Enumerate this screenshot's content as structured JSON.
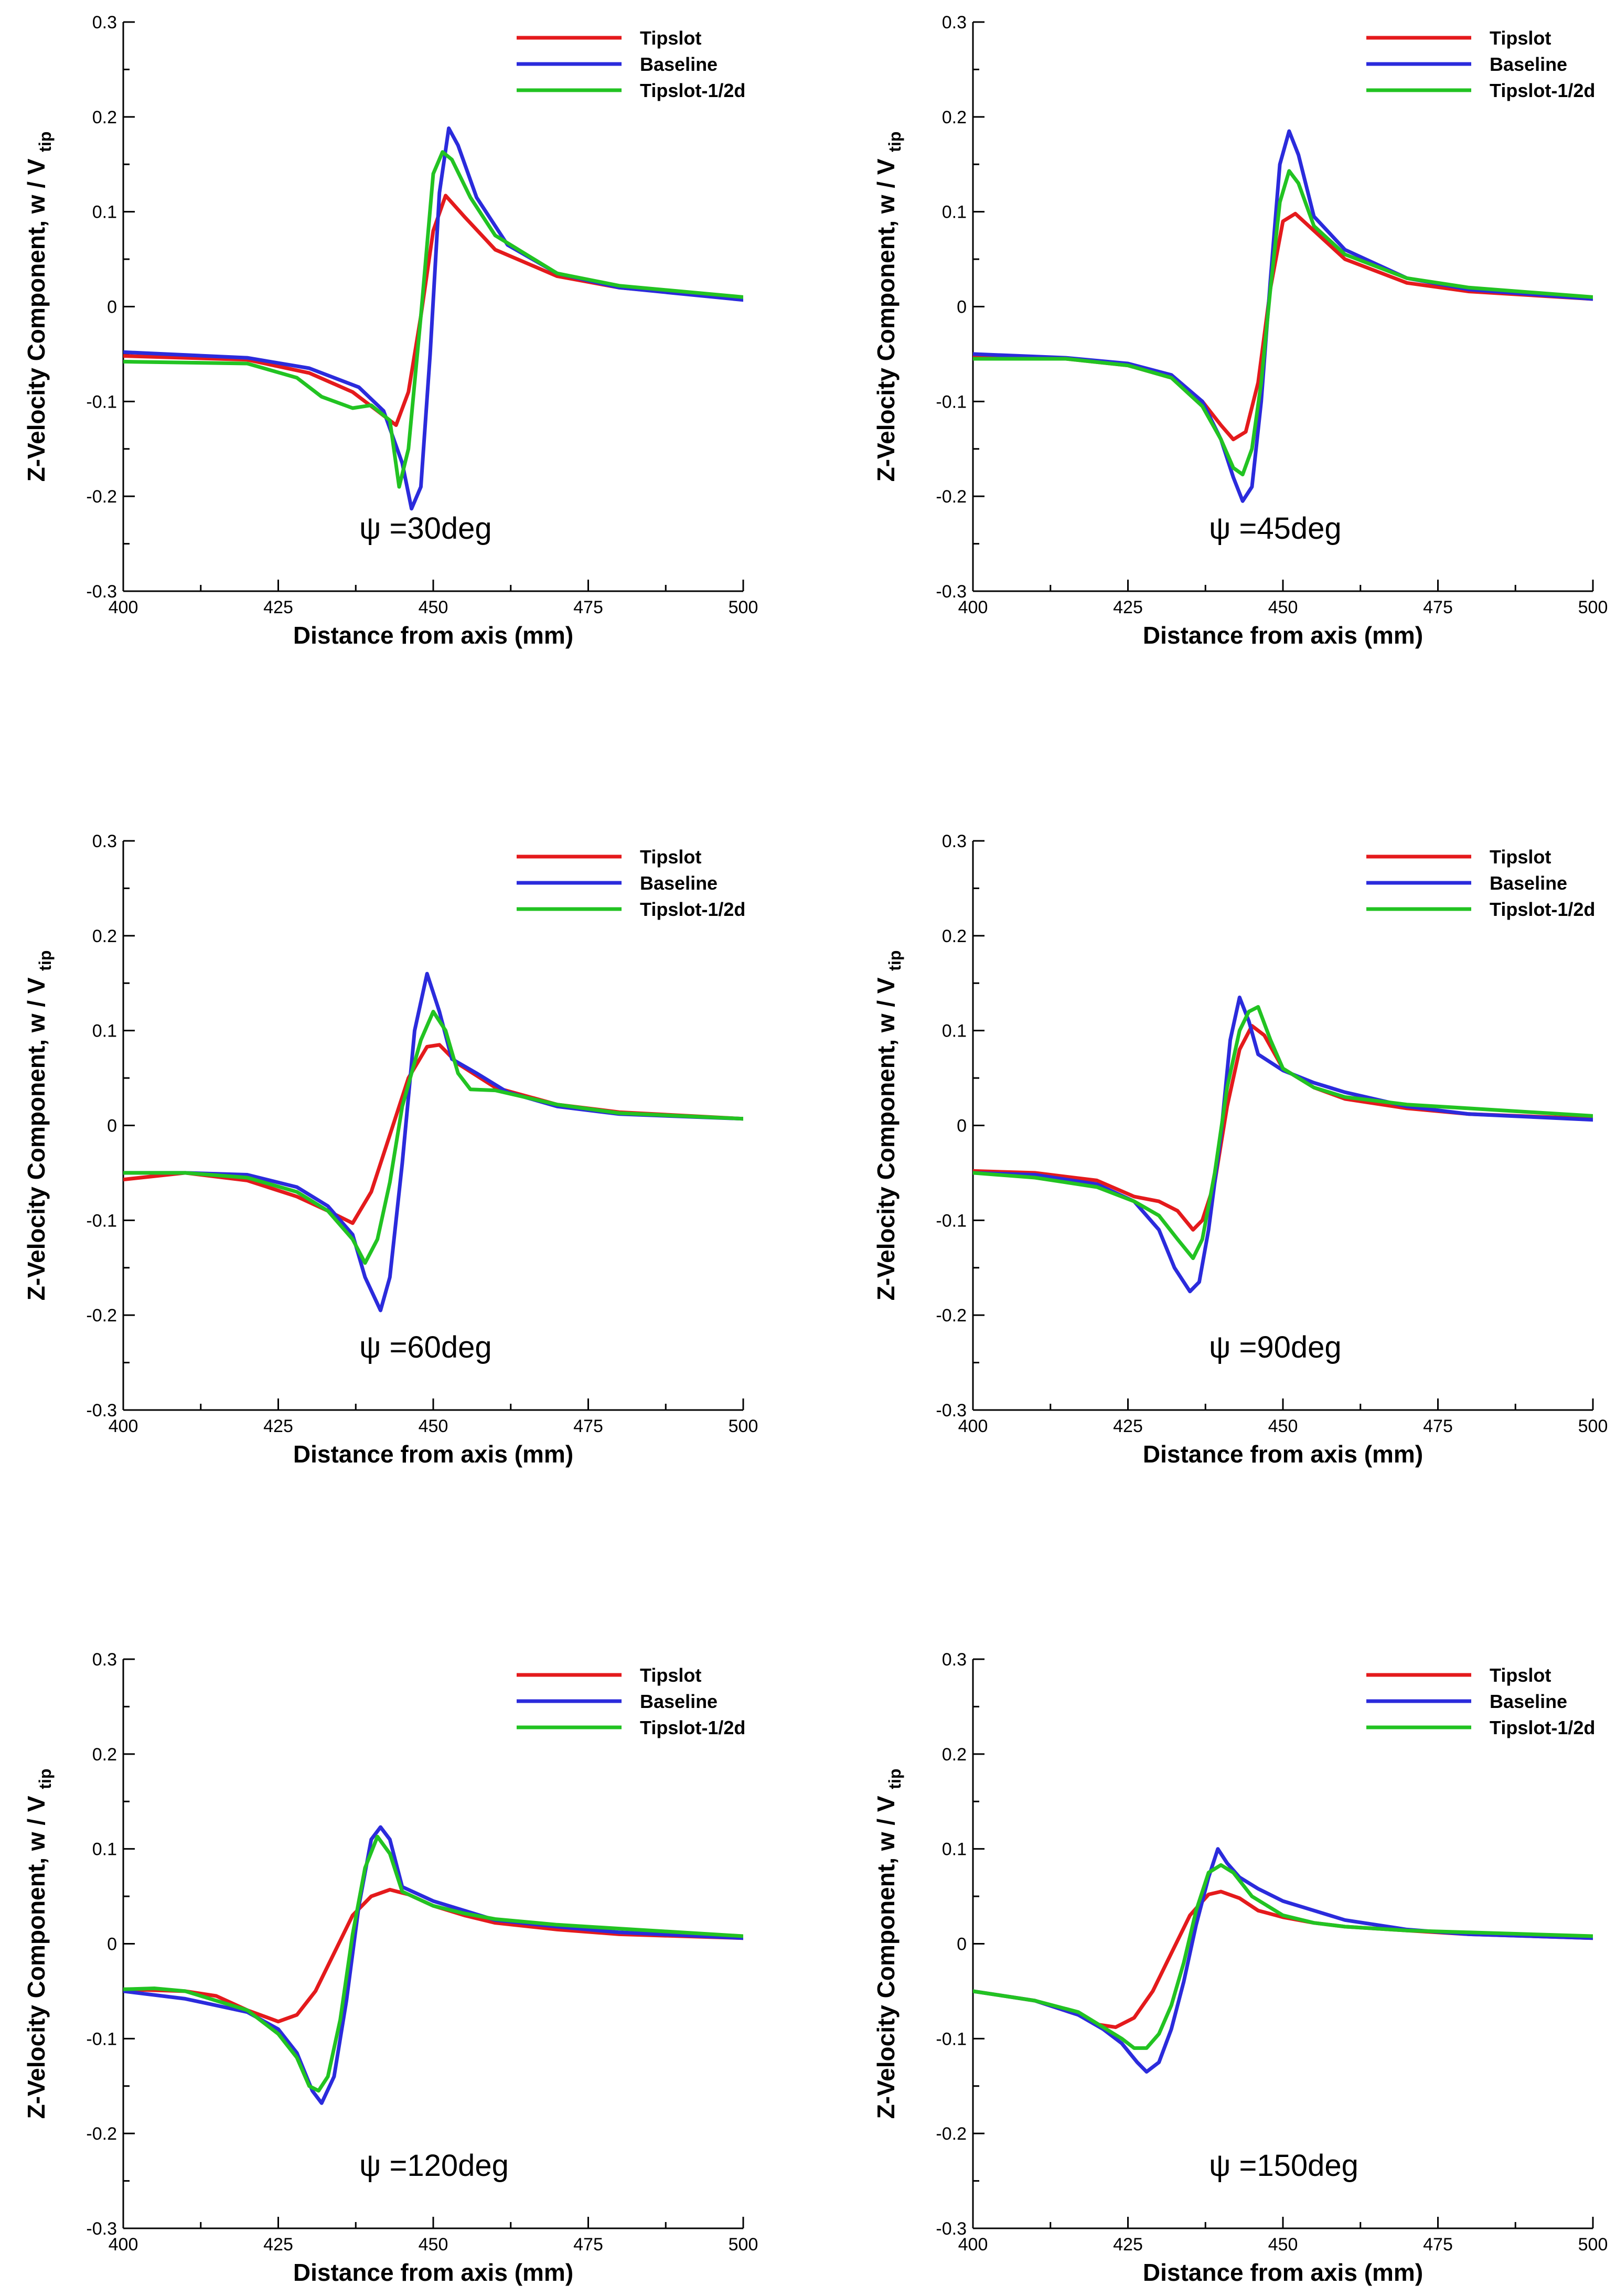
{
  "chart_data": [
    {
      "type": "line",
      "annotation": "ψ =30deg",
      "xlabel": "Distance from axis (mm)",
      "ylabel_main": "Z-Velocity Component, w / V",
      "ylabel_sub": "tip",
      "xlim": [
        400,
        500
      ],
      "ylim": [
        -0.3,
        0.3
      ],
      "x_ticks": [
        400,
        425,
        450,
        475,
        500
      ],
      "x_tick_labels": [
        "400",
        "425",
        "450",
        "475",
        "500"
      ],
      "y_ticks": [
        -0.3,
        -0.2,
        -0.1,
        0,
        0.1,
        0.2,
        0.3
      ],
      "y_tick_labels": [
        "-0.3",
        "-0.2",
        "-0.1",
        "0",
        "0.1",
        "0.2",
        "0.3"
      ],
      "legend": [
        "Tipslot",
        "Baseline",
        "Tipslot-1/2d"
      ],
      "series": [
        {
          "name": "Tipslot",
          "color": "#e41a1c",
          "x": [
            400,
            420,
            430,
            437,
            441,
            444,
            446,
            448,
            450,
            452,
            455,
            460,
            470,
            480,
            500
          ],
          "y": [
            -0.052,
            -0.056,
            -0.07,
            -0.09,
            -0.11,
            -0.125,
            -0.09,
            -0.01,
            0.08,
            0.117,
            0.095,
            0.06,
            0.032,
            0.02,
            0.008
          ]
        },
        {
          "name": "Baseline",
          "color": "#2b2bdc",
          "x": [
            400,
            420,
            430,
            438,
            442,
            445,
            446.5,
            448,
            449.5,
            451,
            452.5,
            454,
            457,
            462,
            470,
            480,
            500
          ],
          "y": [
            -0.048,
            -0.054,
            -0.065,
            -0.085,
            -0.11,
            -0.165,
            -0.213,
            -0.19,
            -0.05,
            0.12,
            0.188,
            0.17,
            0.115,
            0.065,
            0.035,
            0.02,
            0.007
          ]
        },
        {
          "name": "Tipslot-1/2d",
          "color": "#22c322",
          "x": [
            400,
            420,
            428,
            432,
            437,
            440,
            443,
            444.5,
            446,
            448,
            450,
            451.5,
            453,
            456,
            460,
            470,
            480,
            500
          ],
          "y": [
            -0.058,
            -0.06,
            -0.075,
            -0.095,
            -0.107,
            -0.104,
            -0.12,
            -0.19,
            -0.15,
            -0.01,
            0.14,
            0.163,
            0.155,
            0.115,
            0.075,
            0.035,
            0.022,
            0.01
          ]
        }
      ]
    },
    {
      "type": "line",
      "annotation": "ψ =45deg",
      "xlabel": "Distance from axis (mm)",
      "ylabel_main": "Z-Velocity Component, w / V",
      "ylabel_sub": "tip",
      "xlim": [
        400,
        500
      ],
      "ylim": [
        -0.3,
        0.3
      ],
      "x_ticks": [
        400,
        425,
        450,
        475,
        500
      ],
      "x_tick_labels": [
        "400",
        "425",
        "450",
        "475",
        "500"
      ],
      "y_ticks": [
        -0.3,
        -0.2,
        -0.1,
        0,
        0.1,
        0.2,
        0.3
      ],
      "y_tick_labels": [
        "-0.3",
        "-0.2",
        "-0.1",
        "0",
        "0.1",
        "0.2",
        "0.3"
      ],
      "legend": [
        "Tipslot",
        "Baseline",
        "Tipslot-1/2d"
      ],
      "series": [
        {
          "name": "Tipslot",
          "color": "#e41a1c",
          "x": [
            400,
            415,
            425,
            432,
            437,
            440,
            442,
            444,
            446,
            448,
            450,
            452,
            455,
            460,
            470,
            480,
            500
          ],
          "y": [
            -0.052,
            -0.055,
            -0.062,
            -0.075,
            -0.1,
            -0.125,
            -0.14,
            -0.132,
            -0.08,
            0.02,
            0.09,
            0.098,
            0.08,
            0.05,
            0.025,
            0.016,
            0.008
          ]
        },
        {
          "name": "Baseline",
          "color": "#2b2bdc",
          "x": [
            400,
            415,
            425,
            432,
            437,
            440,
            442,
            443.5,
            445,
            446.5,
            448,
            449.5,
            451,
            452.5,
            455,
            460,
            470,
            480,
            500
          ],
          "y": [
            -0.05,
            -0.054,
            -0.06,
            -0.072,
            -0.1,
            -0.14,
            -0.18,
            -0.205,
            -0.19,
            -0.1,
            0.03,
            0.15,
            0.185,
            0.16,
            0.095,
            0.06,
            0.03,
            0.018,
            0.008
          ]
        },
        {
          "name": "Tipslot-1/2d",
          "color": "#22c322",
          "x": [
            400,
            415,
            425,
            432,
            437,
            440,
            442,
            443.5,
            445,
            446.5,
            448,
            449.5,
            451,
            452.5,
            455,
            460,
            470,
            480,
            500
          ],
          "y": [
            -0.055,
            -0.055,
            -0.062,
            -0.075,
            -0.105,
            -0.14,
            -0.17,
            -0.177,
            -0.15,
            -0.08,
            0.02,
            0.11,
            0.143,
            0.13,
            0.085,
            0.055,
            0.03,
            0.02,
            0.01
          ]
        }
      ]
    },
    {
      "type": "line",
      "annotation": "ψ =60deg",
      "xlabel": "Distance from axis (mm)",
      "ylabel_main": "Z-Velocity Component, w / V",
      "ylabel_sub": "tip",
      "xlim": [
        400,
        500
      ],
      "ylim": [
        -0.3,
        0.3
      ],
      "x_ticks": [
        400,
        425,
        450,
        475,
        500
      ],
      "x_tick_labels": [
        "400",
        "425",
        "450",
        "475",
        "500"
      ],
      "y_ticks": [
        -0.3,
        -0.2,
        -0.1,
        0,
        0.1,
        0.2,
        0.3
      ],
      "y_tick_labels": [
        "-0.3",
        "-0.2",
        "-0.1",
        "0",
        "0.1",
        "0.2",
        "0.3"
      ],
      "legend": [
        "Tipslot",
        "Baseline",
        "Tipslot-1/2d"
      ],
      "series": [
        {
          "name": "Tipslot",
          "color": "#e41a1c",
          "x": [
            400,
            410,
            420,
            428,
            433,
            437,
            440,
            443,
            446,
            449,
            451,
            454,
            460,
            470,
            480,
            500
          ],
          "y": [
            -0.057,
            -0.05,
            -0.058,
            -0.075,
            -0.09,
            -0.103,
            -0.07,
            -0.01,
            0.05,
            0.083,
            0.085,
            0.065,
            0.04,
            0.022,
            0.014,
            0.007
          ]
        },
        {
          "name": "Baseline",
          "color": "#2b2bdc",
          "x": [
            400,
            410,
            420,
            428,
            433,
            437,
            439,
            441.5,
            443,
            445,
            447,
            449,
            451,
            453,
            457,
            462,
            470,
            480,
            500
          ],
          "y": [
            -0.05,
            -0.05,
            -0.052,
            -0.065,
            -0.085,
            -0.115,
            -0.16,
            -0.195,
            -0.16,
            -0.04,
            0.1,
            0.16,
            0.12,
            0.07,
            0.055,
            0.035,
            0.02,
            0.012,
            0.007
          ]
        },
        {
          "name": "Tipslot-1/2d",
          "color": "#22c322",
          "x": [
            400,
            410,
            420,
            428,
            433,
            437,
            439,
            441,
            443,
            445,
            448,
            450,
            452,
            454,
            456,
            460,
            470,
            480,
            500
          ],
          "y": [
            -0.05,
            -0.05,
            -0.055,
            -0.07,
            -0.09,
            -0.12,
            -0.145,
            -0.12,
            -0.06,
            0.02,
            0.09,
            0.12,
            0.1,
            0.055,
            0.038,
            0.037,
            0.022,
            0.013,
            0.007
          ]
        }
      ]
    },
    {
      "type": "line",
      "annotation": "ψ =90deg",
      "xlabel": "Distance from axis (mm)",
      "ylabel_main": "Z-Velocity Component, w / V",
      "ylabel_sub": "tip",
      "xlim": [
        400,
        500
      ],
      "ylim": [
        -0.3,
        0.3
      ],
      "x_ticks": [
        400,
        425,
        450,
        475,
        500
      ],
      "x_tick_labels": [
        "400",
        "425",
        "450",
        "475",
        "500"
      ],
      "y_ticks": [
        -0.3,
        -0.2,
        -0.1,
        0,
        0.1,
        0.2,
        0.3
      ],
      "y_tick_labels": [
        "-0.3",
        "-0.2",
        "-0.1",
        "0",
        "0.1",
        "0.2",
        "0.3"
      ],
      "legend": [
        "Tipslot",
        "Baseline",
        "Tipslot-1/2d"
      ],
      "series": [
        {
          "name": "Tipslot",
          "color": "#e41a1c",
          "x": [
            400,
            410,
            420,
            426,
            430,
            433,
            435.5,
            437,
            439,
            441,
            443,
            445,
            447,
            450,
            455,
            460,
            470,
            480,
            500
          ],
          "y": [
            -0.048,
            -0.05,
            -0.058,
            -0.075,
            -0.08,
            -0.09,
            -0.11,
            -0.1,
            -0.06,
            0.02,
            0.08,
            0.105,
            0.095,
            0.06,
            0.04,
            0.028,
            0.018,
            0.012,
            0.007
          ]
        },
        {
          "name": "Baseline",
          "color": "#2b2bdc",
          "x": [
            400,
            410,
            420,
            426,
            430,
            432.5,
            435,
            436.5,
            438,
            440,
            441.5,
            443,
            444.5,
            446,
            450,
            455,
            460,
            470,
            480,
            500
          ],
          "y": [
            -0.05,
            -0.052,
            -0.062,
            -0.08,
            -0.11,
            -0.15,
            -0.175,
            -0.165,
            -0.11,
            -0.01,
            0.09,
            0.135,
            0.11,
            0.075,
            0.058,
            0.045,
            0.035,
            0.02,
            0.012,
            0.006
          ]
        },
        {
          "name": "Tipslot-1/2d",
          "color": "#22c322",
          "x": [
            400,
            410,
            420,
            426,
            430,
            433,
            435.5,
            437,
            439,
            441,
            443,
            444.5,
            446,
            448,
            450,
            455,
            460,
            470,
            480,
            500
          ],
          "y": [
            -0.05,
            -0.055,
            -0.065,
            -0.08,
            -0.095,
            -0.12,
            -0.14,
            -0.12,
            -0.05,
            0.04,
            0.1,
            0.12,
            0.125,
            0.09,
            0.06,
            0.04,
            0.03,
            0.022,
            0.018,
            0.01
          ]
        }
      ]
    },
    {
      "type": "line",
      "annotation": "ψ =120deg",
      "xlabel": "Distance from axis (mm)",
      "ylabel_main": "Z-Velocity Component, w / V",
      "ylabel_sub": "tip",
      "xlim": [
        400,
        500
      ],
      "ylim": [
        -0.3,
        0.3
      ],
      "x_ticks": [
        400,
        425,
        450,
        475,
        500
      ],
      "x_tick_labels": [
        "400",
        "425",
        "450",
        "475",
        "500"
      ],
      "y_ticks": [
        -0.3,
        -0.2,
        -0.1,
        0,
        0.1,
        0.2,
        0.3
      ],
      "y_tick_labels": [
        "-0.3",
        "-0.2",
        "-0.1",
        "0",
        "0.1",
        "0.2",
        "0.3"
      ],
      "legend": [
        "Tipslot",
        "Baseline",
        "Tipslot-1/2d"
      ],
      "series": [
        {
          "name": "Tipslot",
          "color": "#e41a1c",
          "x": [
            400,
            410,
            415,
            420,
            425,
            428,
            431,
            434,
            437,
            440,
            443,
            446,
            450,
            455,
            460,
            470,
            480,
            500
          ],
          "y": [
            -0.048,
            -0.05,
            -0.055,
            -0.07,
            -0.082,
            -0.075,
            -0.05,
            -0.01,
            0.03,
            0.05,
            0.057,
            0.052,
            0.04,
            0.03,
            0.022,
            0.015,
            0.01,
            0.006
          ]
        },
        {
          "name": "Baseline",
          "color": "#2b2bdc",
          "x": [
            400,
            410,
            420,
            425,
            428,
            430.5,
            432,
            434,
            436,
            438,
            440,
            441.5,
            443,
            445,
            450,
            455,
            460,
            470,
            480,
            500
          ],
          "y": [
            -0.05,
            -0.058,
            -0.072,
            -0.09,
            -0.115,
            -0.155,
            -0.168,
            -0.14,
            -0.06,
            0.04,
            0.11,
            0.123,
            0.11,
            0.06,
            0.045,
            0.035,
            0.025,
            0.018,
            0.012,
            0.006
          ]
        },
        {
          "name": "Tipslot-1/2d",
          "color": "#22c322",
          "x": [
            400,
            405,
            410,
            420,
            425,
            428,
            430,
            431.5,
            433,
            435,
            437,
            439,
            441,
            443,
            445,
            450,
            455,
            460,
            470,
            480,
            500
          ],
          "y": [
            -0.048,
            -0.047,
            -0.05,
            -0.07,
            -0.095,
            -0.12,
            -0.15,
            -0.155,
            -0.14,
            -0.08,
            0.01,
            0.08,
            0.113,
            0.095,
            0.055,
            0.04,
            0.032,
            0.026,
            0.02,
            0.016,
            0.008
          ]
        }
      ]
    },
    {
      "type": "line",
      "annotation": "ψ =150deg",
      "xlabel": "Distance from axis (mm)",
      "ylabel_main": "Z-Velocity Component, w / V",
      "ylabel_sub": "tip",
      "xlim": [
        400,
        500
      ],
      "ylim": [
        -0.3,
        0.3
      ],
      "x_ticks": [
        400,
        425,
        450,
        475,
        500
      ],
      "x_tick_labels": [
        "400",
        "425",
        "450",
        "475",
        "500"
      ],
      "y_ticks": [
        -0.3,
        -0.2,
        -0.1,
        0,
        0.1,
        0.2,
        0.3
      ],
      "y_tick_labels": [
        "-0.3",
        "-0.2",
        "-0.1",
        "0",
        "0.1",
        "0.2",
        "0.3"
      ],
      "legend": [
        "Tipslot",
        "Baseline",
        "Tipslot-1/2d"
      ],
      "series": [
        {
          "name": "Tipslot",
          "color": "#e41a1c",
          "x": [
            400,
            410,
            417,
            420,
            423,
            426,
            429,
            432,
            435,
            438,
            440,
            443,
            446,
            450,
            455,
            460,
            470,
            480,
            500
          ],
          "y": [
            -0.05,
            -0.06,
            -0.075,
            -0.085,
            -0.088,
            -0.078,
            -0.05,
            -0.01,
            0.03,
            0.052,
            0.055,
            0.048,
            0.035,
            0.028,
            0.022,
            0.018,
            0.014,
            0.01,
            0.006
          ]
        },
        {
          "name": "Baseline",
          "color": "#2b2bdc",
          "x": [
            400,
            410,
            417,
            421,
            424,
            426.5,
            428,
            430,
            432,
            434,
            436,
            438,
            439.5,
            441,
            443,
            446,
            450,
            455,
            460,
            470,
            480,
            500
          ],
          "y": [
            -0.05,
            -0.06,
            -0.075,
            -0.09,
            -0.105,
            -0.125,
            -0.135,
            -0.125,
            -0.09,
            -0.04,
            0.02,
            0.07,
            0.1,
            0.085,
            0.07,
            0.058,
            0.045,
            0.035,
            0.025,
            0.015,
            0.01,
            0.006
          ]
        },
        {
          "name": "Tipslot-1/2d",
          "color": "#22c322",
          "x": [
            400,
            410,
            417,
            421,
            424,
            426,
            428,
            430,
            432,
            434,
            436,
            438,
            440,
            442,
            445,
            450,
            455,
            460,
            470,
            480,
            500
          ],
          "y": [
            -0.05,
            -0.06,
            -0.072,
            -0.088,
            -0.1,
            -0.11,
            -0.11,
            -0.095,
            -0.065,
            -0.02,
            0.035,
            0.075,
            0.083,
            0.075,
            0.05,
            0.03,
            0.022,
            0.018,
            0.014,
            0.012,
            0.008
          ]
        }
      ]
    }
  ]
}
